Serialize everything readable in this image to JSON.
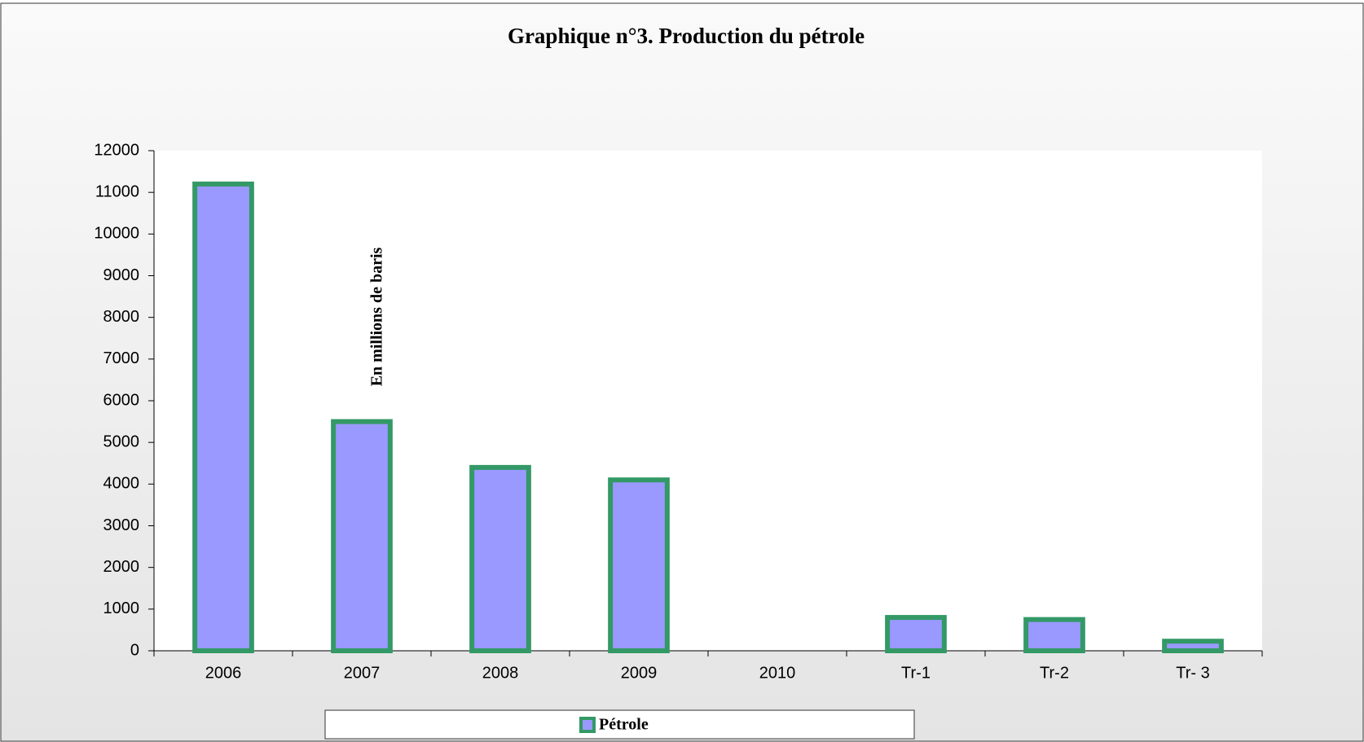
{
  "chart_data": {
    "type": "bar",
    "title": "Graphique n°3. Production du pétrole",
    "annotation": "En millions de baris",
    "categories": [
      "2006",
      "2007",
      "2008",
      "2009",
      "2010",
      "Tr-1",
      "Tr-2",
      "Tr- 3"
    ],
    "series": [
      {
        "name": "Pétrole",
        "color": "#9999ff",
        "edge_color": "#339966",
        "values": [
          11200,
          5500,
          4400,
          4100,
          null,
          800,
          750,
          230
        ]
      }
    ],
    "ylim": [
      0,
      12000
    ],
    "yticks": [
      0,
      1000,
      2000,
      3000,
      4000,
      5000,
      6000,
      7000,
      8000,
      9000,
      10000,
      11000,
      12000
    ],
    "grid": false,
    "legend": "bottom"
  }
}
